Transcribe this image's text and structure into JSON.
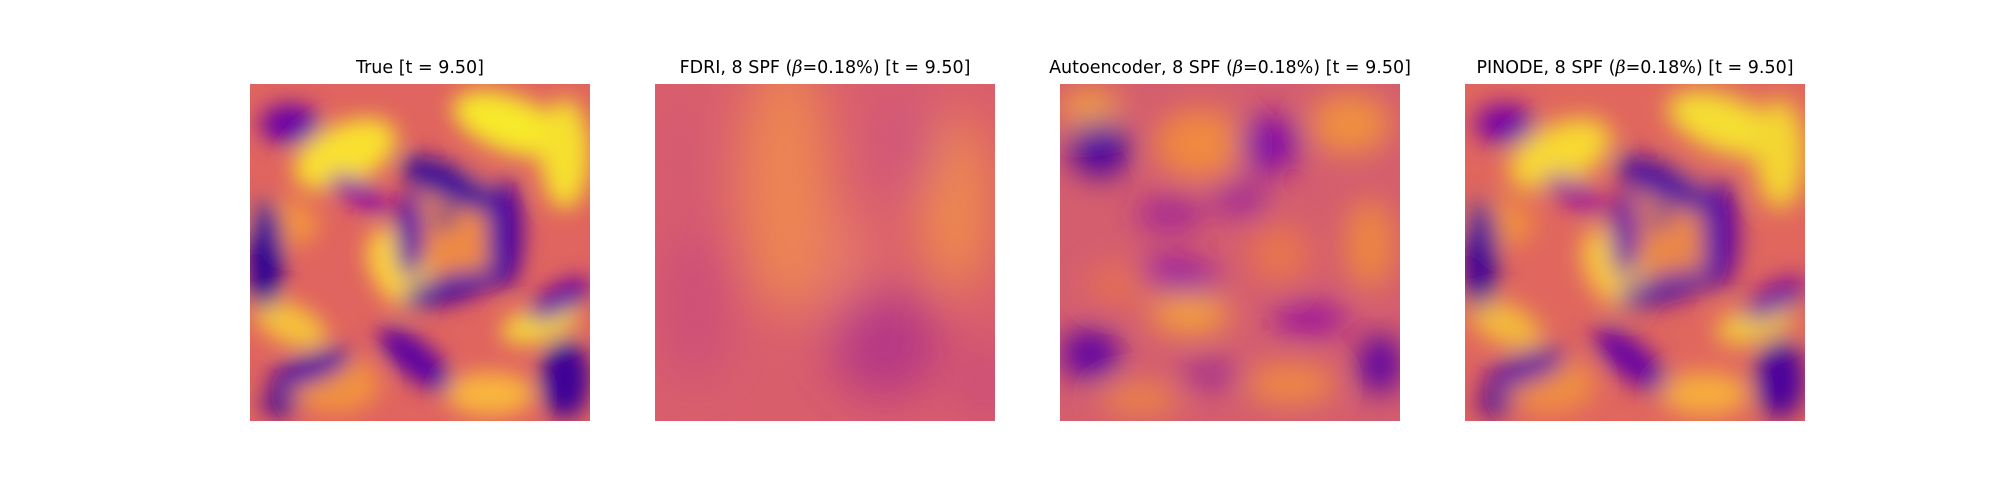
{
  "figure": {
    "background": "#ffffff",
    "colormap": "plasma",
    "panels": [
      {
        "id": "true",
        "title_prefix": "True [t = 9.50]",
        "title_beta": "",
        "title_suffix": ""
      },
      {
        "id": "fdri",
        "title_prefix": "FDRI, 8 SPF (",
        "title_beta": "β",
        "title_suffix": "=0.18%) [t = 9.50]"
      },
      {
        "id": "autoencoder",
        "title_prefix": "Autoencoder, 8 SPF (",
        "title_beta": "β",
        "title_suffix": "=0.18%) [t = 9.50]"
      },
      {
        "id": "pinode",
        "title_prefix": "PINODE, 8 SPF (",
        "title_beta": "β",
        "title_suffix": "=0.18%) [t = 9.50]"
      }
    ]
  }
}
